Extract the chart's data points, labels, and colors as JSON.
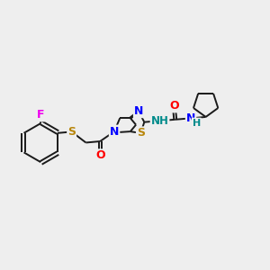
{
  "bg_color": "#eeeeee",
  "bond_color": "#1a1a1a",
  "atom_colors": {
    "F": "#ee00ee",
    "S": "#b8860b",
    "N": "#0000ff",
    "O": "#ff0000",
    "NH": "#008b8b",
    "C": "#1a1a1a"
  },
  "figsize": [
    3.0,
    3.0
  ],
  "dpi": 100
}
